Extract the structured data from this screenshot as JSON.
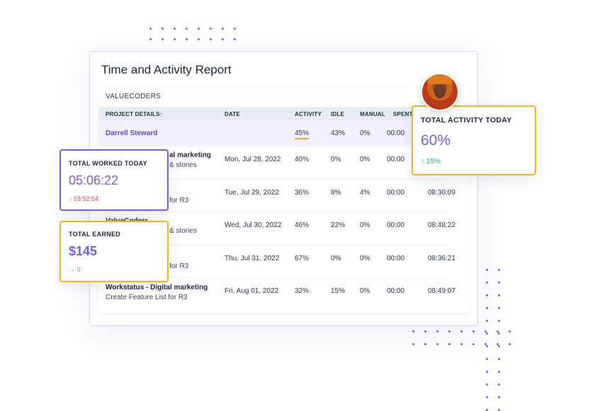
{
  "report": {
    "title": "Time and Activity Report",
    "company": "VALUECODERS",
    "columns": {
      "project": "PROJECT DETAILS↑",
      "date": "DATE",
      "activity": "ACTIVITY",
      "idle": "IDLE",
      "manual": "MANUAL",
      "spent": "SPENT"
    },
    "first_row": {
      "name": "Darrell Steward",
      "activity": "45%",
      "idle": "43%",
      "manual": "0%",
      "spent": "00:00"
    },
    "rows": [
      {
        "project_line1": "al marketing",
        "project_line2": "& stories",
        "date": "Mon, Jul 28, 2022",
        "activity": "40%",
        "idle": "0%",
        "manual": "0%",
        "spent": "00:00",
        "total": ""
      },
      {
        "project_line1": "",
        "project_line2": "for R3",
        "date": "Tue, Jul 29, 2022",
        "activity": "36%",
        "idle": "8%",
        "manual": "4%",
        "spent": "00:00",
        "total": "08:30:09"
      },
      {
        "project_line1": "ValueCoders",
        "project_line2": "& stories",
        "date": "Wed, Jul 30, 2022",
        "activity": "46%",
        "idle": "22%",
        "manual": "0%",
        "spent": "00:00",
        "total": "08:48:22"
      },
      {
        "project_line1": "",
        "project_line2": "for R3",
        "date": "Thu, Jul 31, 2022",
        "activity": "67%",
        "idle": "0%",
        "manual": "0%",
        "spent": "00:00",
        "total": "08:36:21"
      },
      {
        "project_line1": "Workstatus - Digital marketing",
        "project_line2": "Create Feature List for R3",
        "date": "Fri, Aug 01, 2022",
        "activity": "32%",
        "idle": "15%",
        "manual": "0%",
        "spent": "00:00",
        "total": "08:49:07"
      }
    ]
  },
  "cards": {
    "worked": {
      "label": "TOTAL WORKED TODAY",
      "value": "05:06:22",
      "delta": "↓ 03:52:54"
    },
    "earned": {
      "label": "TOTAL EARNED",
      "value": "$145",
      "delta": "→ 0"
    },
    "activity": {
      "label": "TOTAL ACTIVITY TODAY",
      "value": "60%",
      "delta": "↑ 15%"
    }
  },
  "colors": {
    "purple": "#6f63d9",
    "amber": "#f2b422",
    "red": "#e0464a",
    "green": "#2fb36b"
  },
  "icons": {
    "down_arrow": "arrow-down-icon",
    "right_arrow": "arrow-right-icon",
    "up_arrow": "arrow-up-icon"
  }
}
